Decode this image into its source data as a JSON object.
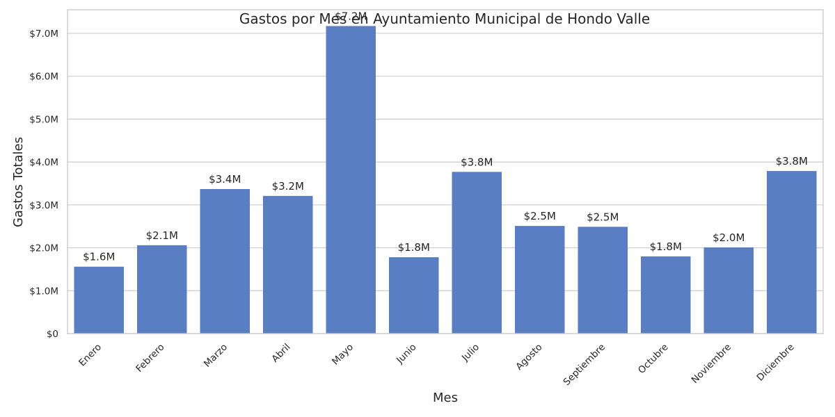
{
  "chart_data": {
    "type": "bar",
    "title": "Gastos por Mes en Ayuntamiento Municipal de Hondo Valle",
    "xlabel": "Mes",
    "ylabel": "Gastos Totales",
    "categories": [
      "Enero",
      "Febrero",
      "Marzo",
      "Abril",
      "Mayo",
      "Junio",
      "Julio",
      "Agosto",
      "Septiembre",
      "Octubre",
      "Noviembre",
      "Diciembre"
    ],
    "values": [
      1560000,
      2060000,
      3370000,
      3210000,
      7170000,
      1780000,
      3770000,
      2510000,
      2490000,
      1800000,
      2010000,
      3790000
    ],
    "data_labels": [
      "$1.6M",
      "$2.1M",
      "$3.4M",
      "$3.2M",
      "$7.2M",
      "$1.8M",
      "$3.8M",
      "$2.5M",
      "$2.5M",
      "$1.8M",
      "$2.0M",
      "$3.8M"
    ],
    "y_ticks": [
      0,
      1000000,
      2000000,
      3000000,
      4000000,
      5000000,
      6000000,
      7000000
    ],
    "y_tick_labels": [
      "$0",
      "$1.0M",
      "$2.0M",
      "$3.0M",
      "$4.0M",
      "$5.0M",
      "$6.0M",
      "$7.0M"
    ],
    "ylim": [
      0,
      7550000
    ],
    "grid": "horizontal",
    "bar_color": "#5a7ec2",
    "grid_color": "#cccccc"
  }
}
